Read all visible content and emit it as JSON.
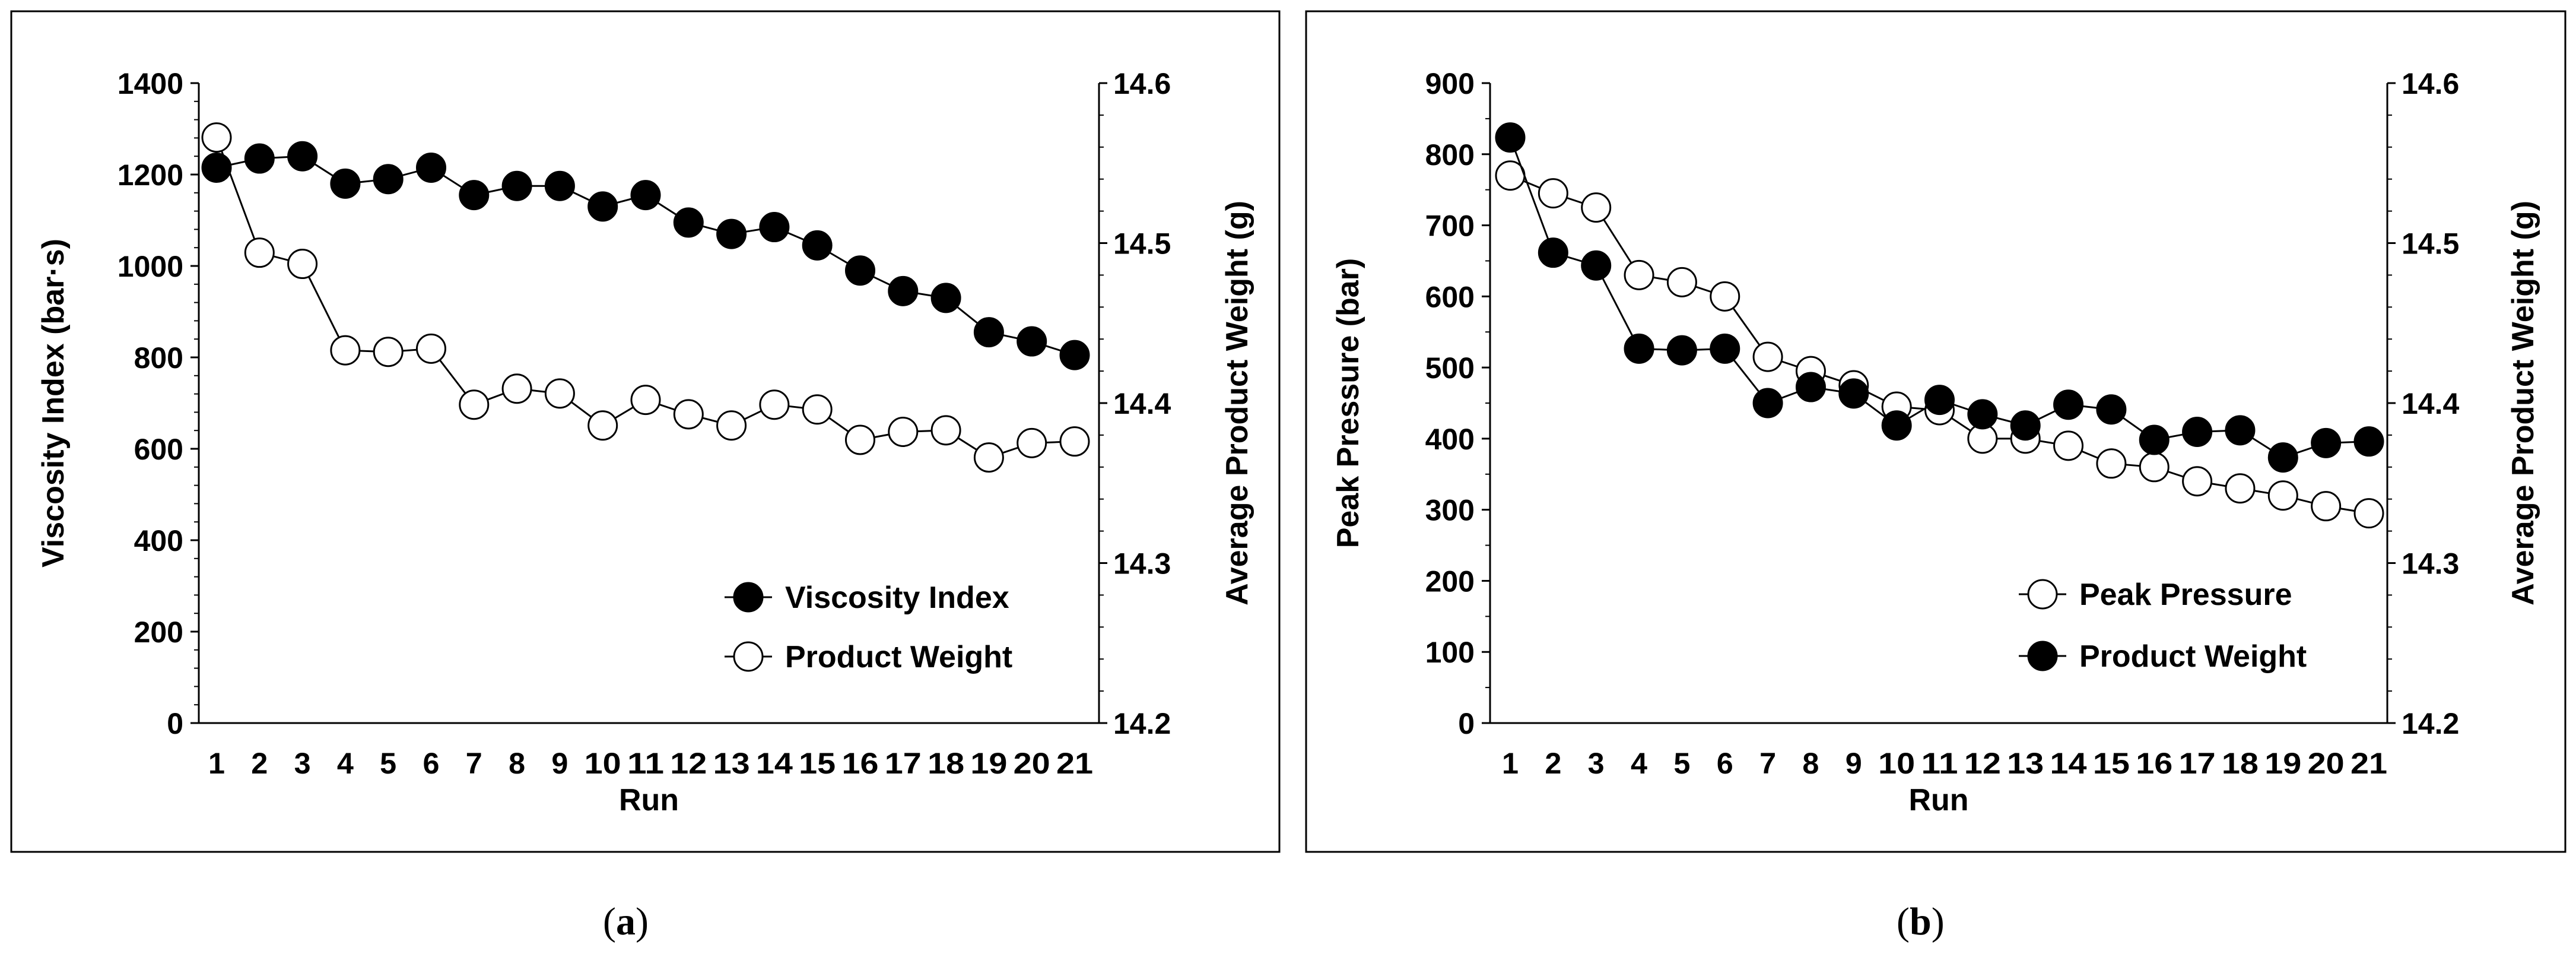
{
  "chart_data": [
    {
      "type": "line",
      "title": "",
      "xlabel": "Run",
      "ylabel": "Viscosity Index (bar·s)",
      "ylabel_right": "Average Product Weight (g)",
      "categories": [
        "1",
        "2",
        "3",
        "4",
        "5",
        "6",
        "7",
        "8",
        "9",
        "10",
        "11",
        "12",
        "13",
        "14",
        "15",
        "16",
        "17",
        "18",
        "19",
        "20",
        "21"
      ],
      "ylim": [
        0,
        1400
      ],
      "ylim_right": [
        14.2,
        14.6
      ],
      "yticks": [
        "0",
        "200",
        "400",
        "600",
        "800",
        "1000",
        "1200",
        "1400"
      ],
      "yticks_right": [
        "14.2",
        "14.3",
        "14.4",
        "14.5",
        "14.6"
      ],
      "legend_position": "bottom-right",
      "series": [
        {
          "name": "Viscosity Index",
          "axis": "left",
          "marker": "filled",
          "values": [
            1215,
            1235,
            1240,
            1180,
            1190,
            1215,
            1155,
            1175,
            1175,
            1130,
            1155,
            1095,
            1070,
            1085,
            1045,
            990,
            945,
            930,
            855,
            835,
            805
          ]
        },
        {
          "name": "Product Weight",
          "axis": "right",
          "marker": "hollow",
          "values": [
            14.566,
            14.494,
            14.487,
            14.433,
            14.432,
            14.434,
            14.399,
            14.409,
            14.406,
            14.386,
            14.402,
            14.393,
            14.386,
            14.399,
            14.396,
            14.377,
            14.382,
            14.383,
            14.366,
            14.375,
            14.376
          ]
        }
      ]
    },
    {
      "type": "line",
      "title": "",
      "xlabel": "Run",
      "ylabel": "Peak Pressure (bar)",
      "ylabel_right": "Average Product Weight (g)",
      "categories": [
        "1",
        "2",
        "3",
        "4",
        "5",
        "6",
        "7",
        "8",
        "9",
        "10",
        "11",
        "12",
        "13",
        "14",
        "15",
        "16",
        "17",
        "18",
        "19",
        "20",
        "21"
      ],
      "ylim": [
        0,
        900
      ],
      "ylim_right": [
        14.2,
        14.6
      ],
      "yticks": [
        "0",
        "100",
        "200",
        "300",
        "400",
        "500",
        "600",
        "700",
        "800",
        "900"
      ],
      "yticks_right": [
        "14.2",
        "14.3",
        "14.4",
        "14.5",
        "14.6"
      ],
      "legend_position": "bottom-right",
      "series": [
        {
          "name": "Peak Pressure",
          "axis": "left",
          "marker": "hollow",
          "values": [
            770,
            745,
            725,
            630,
            620,
            600,
            515,
            495,
            475,
            445,
            440,
            400,
            400,
            390,
            365,
            360,
            340,
            330,
            320,
            305,
            295
          ]
        },
        {
          "name": "Product Weight",
          "axis": "right",
          "marker": "filled",
          "values": [
            14.566,
            14.494,
            14.486,
            14.434,
            14.433,
            14.434,
            14.4,
            14.41,
            14.406,
            14.386,
            14.402,
            14.393,
            14.386,
            14.399,
            14.396,
            14.377,
            14.382,
            14.383,
            14.366,
            14.375,
            14.376
          ]
        }
      ]
    }
  ],
  "captions": {
    "a": "a",
    "b": "b"
  }
}
